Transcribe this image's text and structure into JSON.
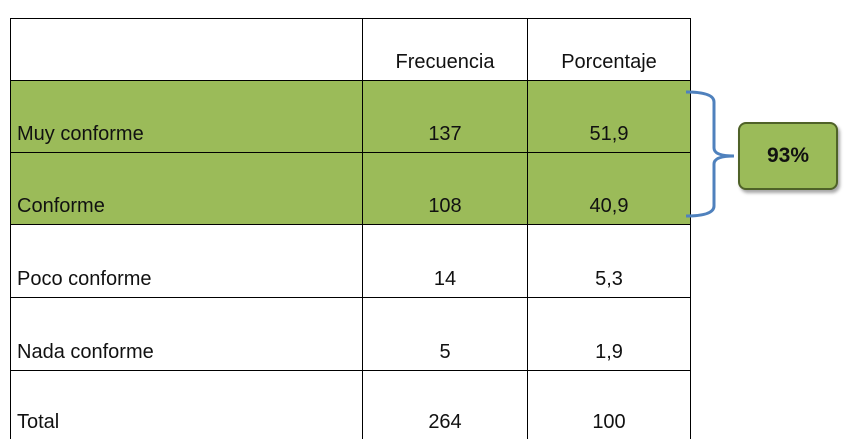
{
  "table": {
    "columns": [
      "Frecuencia",
      "Porcentaje"
    ],
    "rows": [
      [
        "Muy conforme",
        "137",
        "51,9"
      ],
      [
        "Conforme",
        "108",
        "40,9"
      ],
      [
        "Poco conforme",
        "14",
        "5,3"
      ],
      [
        "Nada conforme",
        "5",
        "1,9"
      ],
      [
        "Total",
        "264",
        "100"
      ]
    ]
  },
  "callout": "93%"
}
